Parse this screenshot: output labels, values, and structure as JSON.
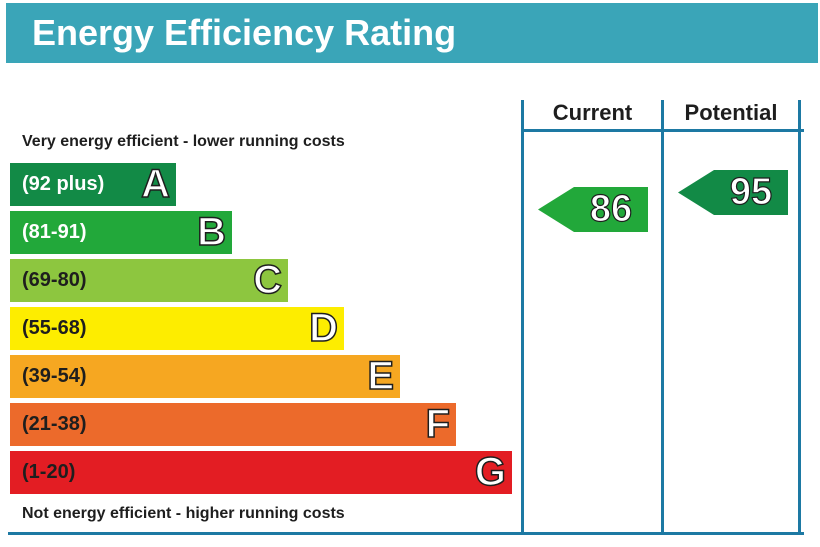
{
  "header": {
    "title": "Energy Efficiency Rating",
    "color": "#3aa5b8"
  },
  "captions": {
    "top": "Very energy efficient - lower running costs",
    "bottom": "Not energy efficient - higher running costs"
  },
  "columns": {
    "current": "Current",
    "potential": "Potential"
  },
  "chart_data": {
    "type": "bar",
    "categories": [
      "A",
      "B",
      "C",
      "D",
      "E",
      "F",
      "G"
    ],
    "ranges": [
      "(92 plus)",
      "(81-91)",
      "(69-80)",
      "(55-68)",
      "(39-54)",
      "(21-38)",
      "(1-20)"
    ],
    "colors": [
      "#128a46",
      "#22a83a",
      "#8dc63f",
      "#fded00",
      "#f6a721",
      "#ec6a2b",
      "#e31d23"
    ],
    "range_text_colors": [
      "#ffffff",
      "#ffffff",
      "#1e1e1e",
      "#1e1e1e",
      "#1e1e1e",
      "#1e1e1e",
      "#1e1e1e"
    ],
    "current": {
      "value": "86",
      "band": "B",
      "color": "#22a83a"
    },
    "potential": {
      "value": "95",
      "band": "A",
      "color": "#128a46"
    }
  }
}
